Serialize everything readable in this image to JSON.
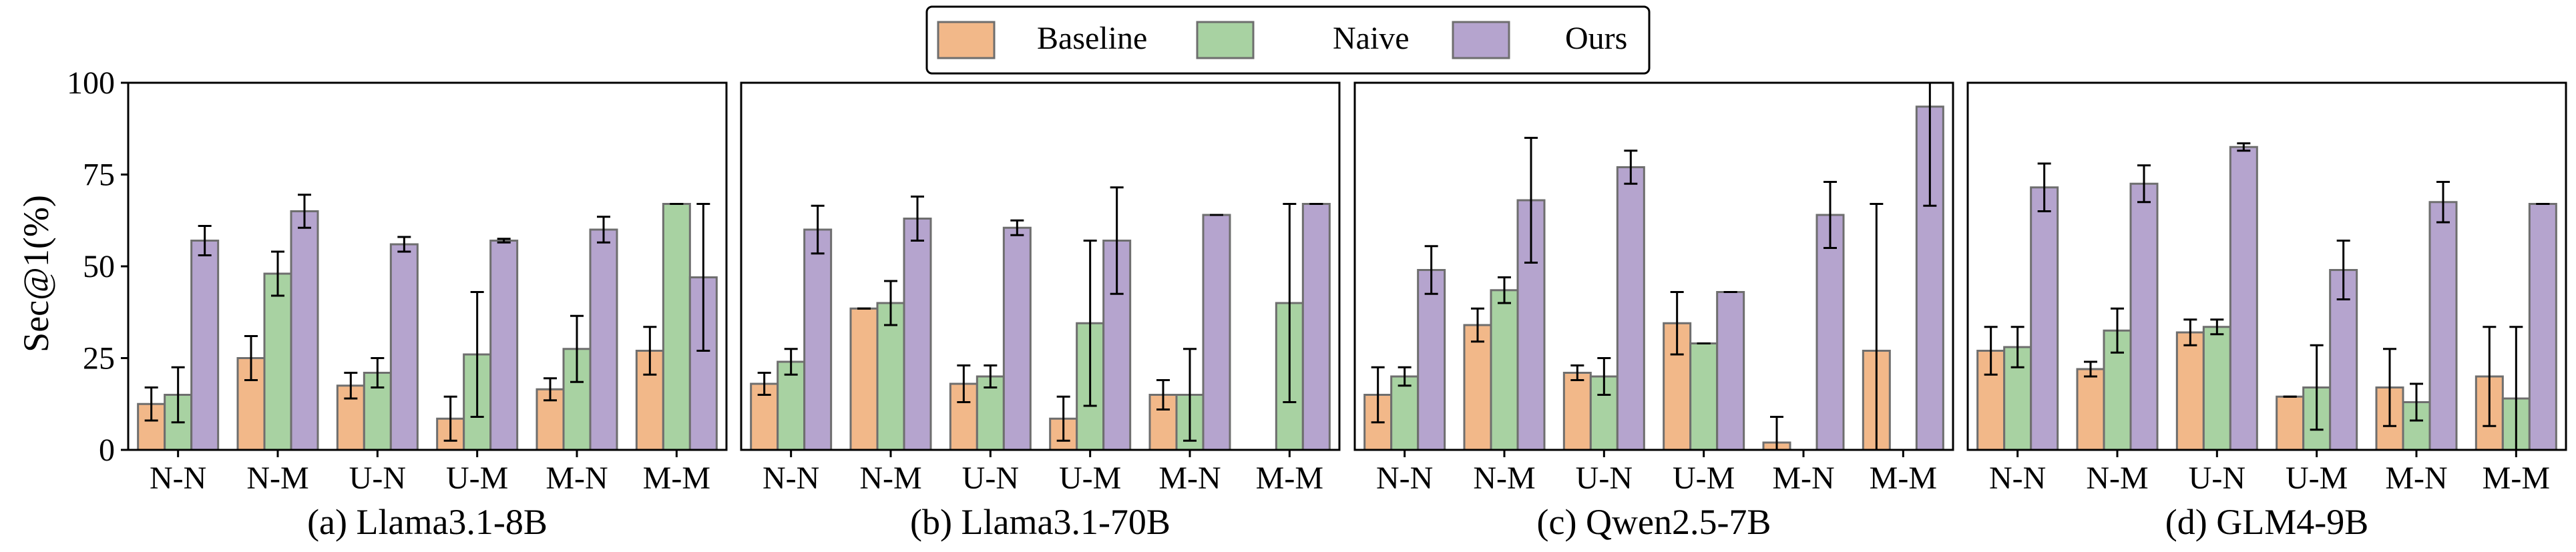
{
  "chart_data": {
    "type": "bar",
    "ylabel": "Sec@1(%)",
    "ylim": [
      0,
      100
    ],
    "yticks": [
      0,
      25,
      50,
      75,
      100
    ],
    "categories": [
      "N-N",
      "N-M",
      "U-N",
      "U-M",
      "M-N",
      "M-M"
    ],
    "legend": {
      "placement": "top-center",
      "entries": [
        {
          "name": "Baseline",
          "color": "#f2b889"
        },
        {
          "name": "Naive",
          "color": "#a8d2a2"
        },
        {
          "name": "Ours",
          "color": "#b5a4ce"
        }
      ]
    },
    "panels": [
      {
        "title": "(a) Llama3.1-8B",
        "series": [
          {
            "name": "Baseline",
            "values": [
              12.5,
              25,
              17.5,
              8.5,
              16.5,
              27
            ],
            "errors": [
              4.5,
              6,
              3.5,
              6,
              3,
              6.5
            ]
          },
          {
            "name": "Naive",
            "values": [
              15,
              48,
              21,
              26,
              27.5,
              67
            ],
            "errors": [
              7.5,
              6,
              4,
              17,
              9,
              0
            ]
          },
          {
            "name": "Ours",
            "values": [
              57,
              65,
              56,
              57,
              60,
              47
            ],
            "errors": [
              4,
              4.5,
              2,
              0.5,
              3.5,
              20
            ]
          }
        ]
      },
      {
        "title": "(b) Llama3.1-70B",
        "series": [
          {
            "name": "Baseline",
            "values": [
              18,
              38.5,
              18,
              8.5,
              15,
              0
            ],
            "errors": [
              3,
              0,
              5,
              6,
              4,
              0
            ]
          },
          {
            "name": "Naive",
            "values": [
              24,
              40,
              20,
              34.5,
              15,
              40
            ],
            "errors": [
              3.5,
              6,
              3,
              22.5,
              12.5,
              27
            ]
          },
          {
            "name": "Ours",
            "values": [
              60,
              63,
              60.5,
              57,
              64,
              67
            ],
            "errors": [
              6.5,
              6,
              2,
              14.5,
              0,
              0
            ]
          }
        ]
      },
      {
        "title": "(c) Qwen2.5-7B",
        "series": [
          {
            "name": "Baseline",
            "values": [
              15,
              34,
              21,
              34.5,
              2,
              27
            ],
            "errors": [
              7.5,
              4.5,
              2,
              8.5,
              7,
              40
            ]
          },
          {
            "name": "Naive",
            "values": [
              20,
              43.5,
              20,
              29,
              0,
              0
            ],
            "errors": [
              2.5,
              3.5,
              5,
              0,
              0,
              0
            ]
          },
          {
            "name": "Ours",
            "values": [
              49,
              68,
              77,
              43,
              64,
              93.5
            ],
            "errors": [
              6.5,
              17,
              4.5,
              0,
              9,
              27
            ]
          }
        ]
      },
      {
        "title": "(d) GLM4-9B",
        "series": [
          {
            "name": "Baseline",
            "values": [
              27,
              22,
              32,
              14.5,
              17,
              20
            ],
            "errors": [
              6.5,
              2,
              3.5,
              0,
              10.5,
              13.5
            ]
          },
          {
            "name": "Naive",
            "values": [
              28,
              32.5,
              33.5,
              17,
              13,
              14
            ],
            "errors": [
              5.5,
              6,
              2,
              11.5,
              5,
              19.5
            ]
          },
          {
            "name": "Ours",
            "values": [
              71.5,
              72.5,
              82.5,
              49,
              67.5,
              67
            ],
            "errors": [
              6.5,
              5,
              1,
              8,
              5.5,
              0
            ]
          }
        ]
      }
    ]
  }
}
